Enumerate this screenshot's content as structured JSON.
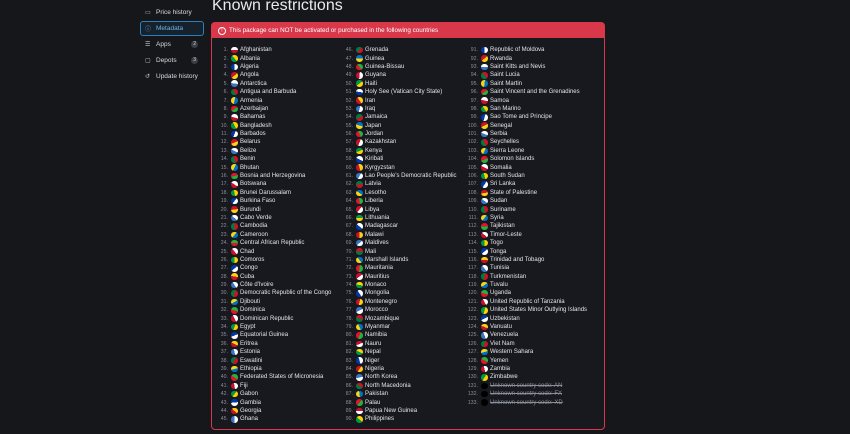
{
  "sidebar": {
    "items": [
      {
        "label": "Price history",
        "icon": "credit-card-icon",
        "active": false
      },
      {
        "label": "Metadata",
        "icon": "info-icon",
        "active": true
      },
      {
        "label": "Apps",
        "icon": "list-icon",
        "badge": "2",
        "active": false
      },
      {
        "label": "Depots",
        "icon": "hard-drive-icon",
        "badge": "3",
        "active": false
      },
      {
        "label": "Update history",
        "icon": "history-icon",
        "active": false
      }
    ]
  },
  "page": {
    "title": "Known restrictions"
  },
  "alert": {
    "message": "This package can NOT be activated or purchased in the following countries",
    "color": "#d9384a"
  },
  "countries": [
    "Afghanistan",
    "Albania",
    "Algeria",
    "Angola",
    "Antarctica",
    "Antigua and Barbuda",
    "Armenia",
    "Azerbaijan",
    "Bahamas",
    "Bangladesh",
    "Barbados",
    "Belarus",
    "Belize",
    "Benin",
    "Bhutan",
    "Bosnia and Herzegovina",
    "Botswana",
    "Brunei Darussalam",
    "Burkina Faso",
    "Burundi",
    "Cabo Verde",
    "Cambodia",
    "Cameroon",
    "Central African Republic",
    "Chad",
    "Comoros",
    "Congo",
    "Cuba",
    "Côte d'Ivoire",
    "Democratic Republic of the Congo",
    "Djibouti",
    "Dominica",
    "Dominican Republic",
    "Egypt",
    "Equatorial Guinea",
    "Eritrea",
    "Estonia",
    "Eswatini",
    "Ethiopia",
    "Federated States of Micronesia",
    "Fiji",
    "Gabon",
    "Gambia",
    "Georgia",
    "Ghana",
    "Grenada",
    "Guinea",
    "Guinea-Bissau",
    "Guyana",
    "Haiti",
    "Holy See (Vatican City State)",
    "Iran",
    "Iraq",
    "Jamaica",
    "Japan",
    "Jordan",
    "Kazakhstan",
    "Kenya",
    "Kiribati",
    "Kyrgyzstan",
    "Lao People's Democratic Republic",
    "Latvia",
    "Lesotho",
    "Liberia",
    "Libya",
    "Lithuania",
    "Madagascar",
    "Malawi",
    "Maldives",
    "Mali",
    "Marshall Islands",
    "Mauritania",
    "Mauritius",
    "Monaco",
    "Mongolia",
    "Montenegro",
    "Morocco",
    "Mozambique",
    "Myanmar",
    "Namibia",
    "Nauru",
    "Nepal",
    "Niger",
    "Nigeria",
    "North Korea",
    "North Macedonia",
    "Pakistan",
    "Palau",
    "Papua New Guinea",
    "Philippines",
    "Republic of Moldova",
    "Rwanda",
    "Saint Kitts and Nevis",
    "Saint Lucia",
    "Saint Martin",
    "Saint Vincent and the Grenadines",
    "Samoa",
    "San Marino",
    "Sao Tome and Principe",
    "Senegal",
    "Serbia",
    "Seychelles",
    "Sierra Leone",
    "Solomon Islands",
    "Somalia",
    "South Sudan",
    "Sri Lanka",
    "State of Palestine",
    "Sudan",
    "Suriname",
    "Syria",
    "Tajikistan",
    "Timor-Leste",
    "Togo",
    "Tonga",
    "Trinidad and Tobago",
    "Tunisia",
    "Turkmenistan",
    "Tuvalu",
    "Uganda",
    "United Republic of Tanzania",
    "United States Minor Outlying Islands",
    "Uzbekistan",
    "Vanuatu",
    "Venezuela",
    "Viet Nam",
    "Western Sahara",
    "Yemen",
    "Zambia",
    "Zimbabwe",
    "Unknown country code: AN",
    "Unknown country code: FX",
    "Unknown country code: XD"
  ]
}
